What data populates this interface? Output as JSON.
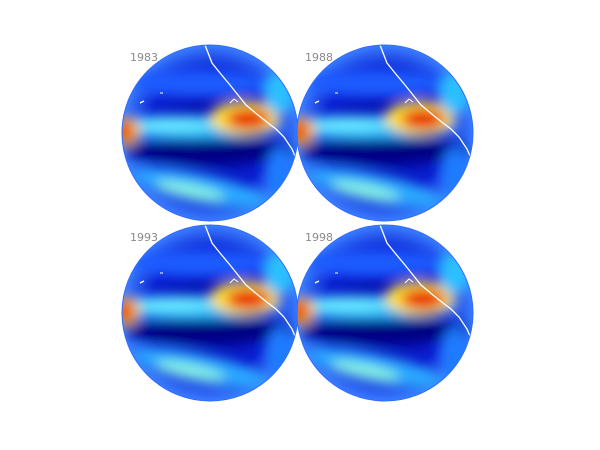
{
  "panels": [
    {
      "label": "1983"
    },
    {
      "label": "1988"
    },
    {
      "label": "1993"
    },
    {
      "label": "1998"
    }
  ]
}
